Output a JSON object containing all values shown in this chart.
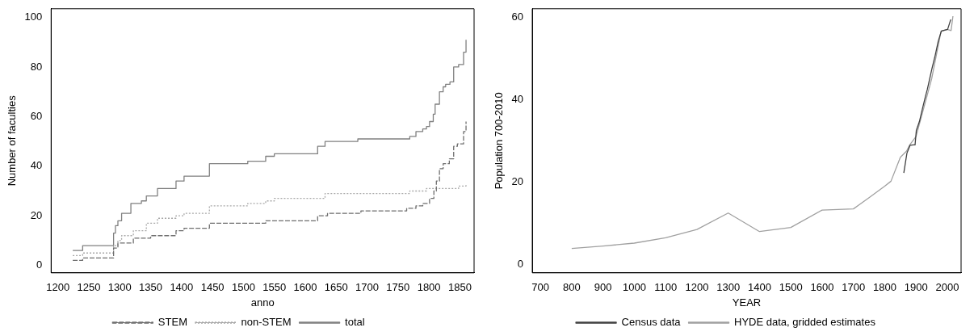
{
  "chart_data": [
    {
      "type": "step",
      "xlabel": "anno",
      "ylabel": "Number of faculties",
      "xlim": [
        1189,
        1873
      ],
      "xticks": [
        1200,
        1250,
        1300,
        1350,
        1400,
        1450,
        1500,
        1550,
        1600,
        1650,
        1700,
        1750,
        1800,
        1850
      ],
      "ylim": [
        -3,
        103.5
      ],
      "yticks": [
        0,
        20,
        40,
        60,
        80,
        100
      ],
      "grid": false,
      "legend": "bottom",
      "series": [
        {
          "name": "STEM",
          "color": "#6e6e6e",
          "line_style": "dashed",
          "x": [
            1224,
            1240,
            1290,
            1297,
            1322,
            1350,
            1391,
            1404,
            1445,
            1536,
            1620,
            1636,
            1690,
            1764,
            1779,
            1790,
            1801,
            1808,
            1812,
            1817,
            1823,
            1833,
            1840,
            1846,
            1856,
            1860
          ],
          "values": [
            2,
            3,
            7,
            9,
            11,
            12,
            14,
            15,
            17,
            18,
            20,
            21,
            22,
            23,
            24,
            25,
            27,
            30,
            34,
            39,
            41,
            43,
            48,
            49,
            54,
            58
          ]
        },
        {
          "name": "non-STEM",
          "color": "#a8a8a8",
          "line_style": "dotted",
          "x": [
            1224,
            1240,
            1290,
            1297,
            1303,
            1322,
            1343,
            1361,
            1391,
            1404,
            1445,
            1507,
            1536,
            1550,
            1632,
            1769,
            1796,
            1848,
            1860
          ],
          "values": [
            4,
            5,
            8,
            10,
            12,
            14,
            17,
            19,
            20,
            21,
            24,
            25,
            26,
            27,
            29,
            30,
            31,
            32,
            33
          ]
        },
        {
          "name": "total",
          "color": "#808080",
          "line_style": "solid",
          "x": [
            1224,
            1240,
            1290,
            1293,
            1297,
            1303,
            1318,
            1335,
            1343,
            1361,
            1391,
            1404,
            1445,
            1507,
            1536,
            1550,
            1620,
            1632,
            1685,
            1769,
            1779,
            1790,
            1796,
            1801,
            1807,
            1810,
            1817,
            1823,
            1827,
            1834,
            1840,
            1848,
            1856,
            1860
          ],
          "values": [
            6,
            8,
            13,
            16,
            18,
            21,
            25,
            26,
            28,
            31,
            34,
            36,
            41,
            42,
            44,
            45,
            48,
            50,
            51,
            52,
            54,
            55,
            56,
            58,
            61,
            65,
            70,
            72,
            73,
            74,
            80,
            81,
            86,
            91
          ]
        }
      ]
    },
    {
      "type": "line",
      "xlabel": "YEAR",
      "ylabel": "Population 700-2010",
      "xlim": [
        674,
        2044
      ],
      "xticks": [
        700,
        800,
        900,
        1000,
        1100,
        1200,
        1300,
        1400,
        1500,
        1600,
        1700,
        1800,
        1900,
        2000
      ],
      "ylim": [
        -2,
        62
      ],
      "yticks": [
        0,
        20,
        40,
        60
      ],
      "grid": false,
      "legend": "bottom",
      "series": [
        {
          "name": "Census data",
          "color": "#404040",
          "line_style": "solid",
          "x": [
            1861,
            1871,
            1881,
            1891,
            1897,
            1901,
            1911,
            1921,
            1931,
            1936,
            1951,
            1961,
            1971,
            1981,
            1991,
            2001,
            2011
          ],
          "values": [
            22.2,
            27,
            28.9,
            29,
            29,
            32.5,
            34.7,
            37.9,
            41,
            42.4,
            47.5,
            50.6,
            54.1,
            56.6,
            56.8,
            57,
            59.4
          ]
        },
        {
          "name": "HYDE data, gridded estimates",
          "color": "#a0a0a0",
          "line_style": "solid",
          "x": [
            800,
            900,
            1000,
            1100,
            1200,
            1300,
            1400,
            1500,
            1600,
            1700,
            1750,
            1800,
            1820,
            1850,
            1870,
            1880,
            1900,
            1950,
            1980,
            2000,
            2012,
            2018
          ],
          "values": [
            3.9,
            4.5,
            5.2,
            6.5,
            8.5,
            12.5,
            8,
            9,
            13.2,
            13.5,
            16.2,
            19,
            20.2,
            26,
            27.5,
            29,
            31,
            45,
            56.5,
            57,
            56.7,
            60.2
          ]
        }
      ]
    }
  ]
}
